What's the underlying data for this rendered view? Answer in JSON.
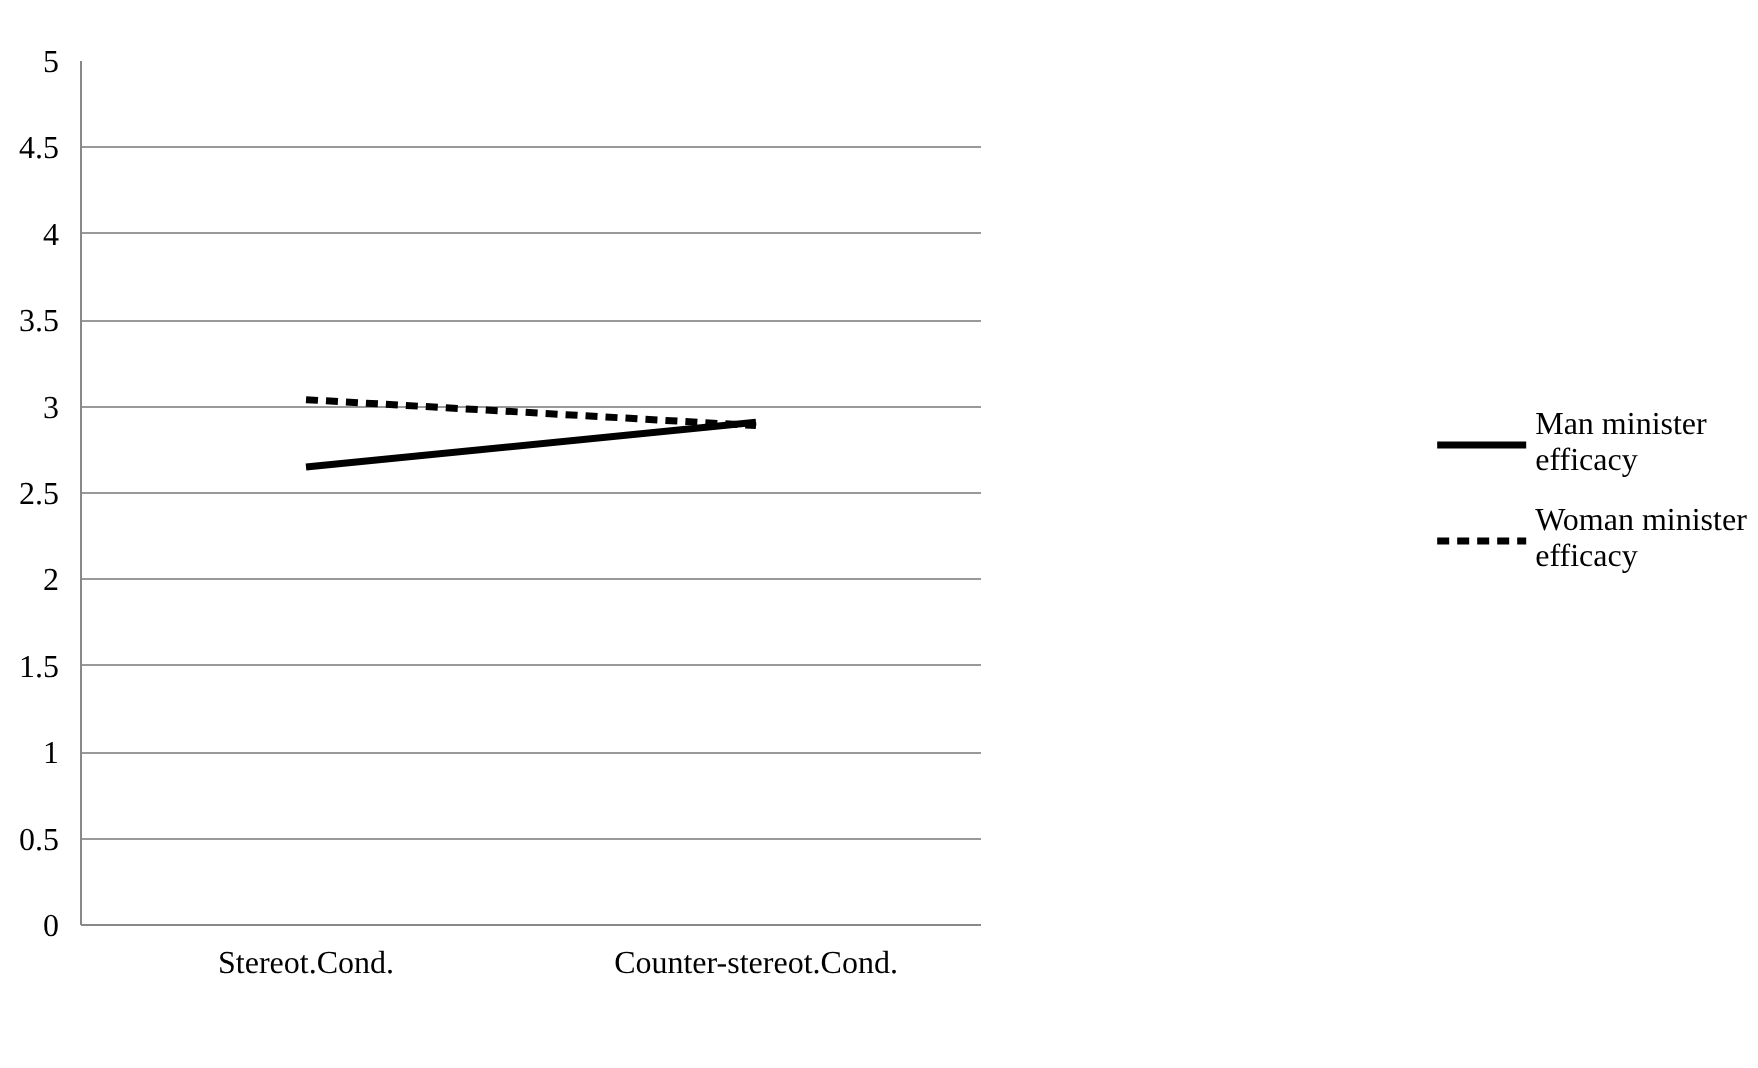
{
  "chart_data": {
    "type": "line",
    "categories": [
      "Stereot.Cond.",
      "Counter-stereot.Cond."
    ],
    "series": [
      {
        "name": "Man minister efficacy",
        "color": "#000000",
        "values": [
          2.65,
          2.91
        ],
        "line_style": "solid"
      },
      {
        "name": "Woman minister efficacy",
        "color": "#000000",
        "values": [
          3.04,
          2.89
        ],
        "line_style": "dashed"
      }
    ],
    "ylim": [
      0,
      5
    ],
    "yticks": [
      0,
      0.5,
      1,
      1.5,
      2,
      2.5,
      3,
      3.5,
      4,
      4.5,
      5
    ],
    "grid": "y",
    "legend": "right",
    "marker": "none"
  }
}
